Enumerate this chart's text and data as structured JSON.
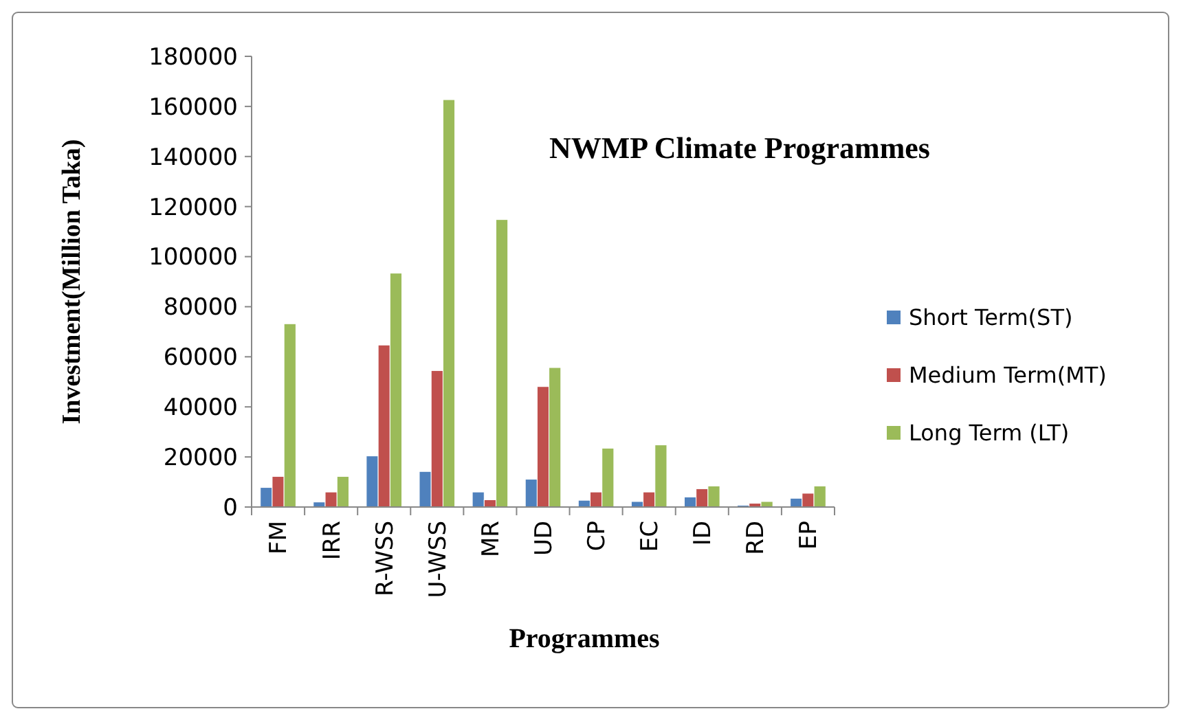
{
  "chart_data": {
    "type": "bar",
    "title": "NWMP  Climate Programmes",
    "xlabel": "Programmes",
    "ylabel": "Investment(Million Taka)",
    "categories": [
      "FM",
      "IRR",
      "R-WSS",
      "U-WSS",
      "MR",
      "UD",
      "CP",
      "EC",
      "ID",
      "RD",
      "EP"
    ],
    "series": [
      {
        "name": "Short Term(ST)",
        "color": "#4f81bd",
        "values": [
          7800,
          2000,
          20400,
          14200,
          6000,
          11100,
          2700,
          2200,
          4000,
          700,
          3500
        ]
      },
      {
        "name": "Medium Term(MT)",
        "color": "#c0504d",
        "values": [
          12200,
          6000,
          64700,
          54500,
          2900,
          48100,
          6000,
          6000,
          7300,
          1500,
          5500
        ]
      },
      {
        "name": "Long Term (LT)",
        "color": "#9bbb59",
        "values": [
          73200,
          12200,
          93400,
          162700,
          114800,
          55700,
          23500,
          24800,
          8400,
          2200,
          8400
        ]
      }
    ],
    "ylim": [
      0,
      180000
    ],
    "yticks": [
      0,
      20000,
      40000,
      60000,
      80000,
      100000,
      120000,
      140000,
      160000,
      180000
    ],
    "grid": false,
    "legend": "right"
  }
}
